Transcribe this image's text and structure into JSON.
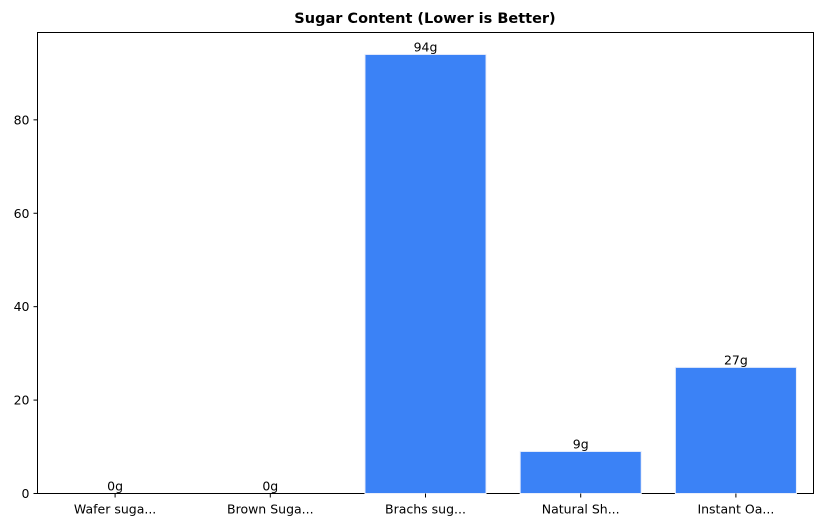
{
  "chart_data": {
    "type": "bar",
    "title": "Sugar Content (Lower is Better)",
    "xlabel": "",
    "ylabel": "",
    "categories": [
      "Wafer suga...",
      "Brown Suga...",
      "Brachs sug...",
      "Natural Sh...",
      "Instant Oa..."
    ],
    "values": [
      0,
      0,
      94,
      9,
      27
    ],
    "data_labels": [
      "0g",
      "0g",
      "94g",
      "9g",
      "27g"
    ],
    "ylim": [
      0,
      98.7
    ],
    "yticks": [
      0,
      20,
      40,
      60,
      80
    ],
    "grid": false,
    "legend": "none",
    "bar_color": "#3b82f6",
    "bar_edge_color": "#e9eefb"
  }
}
